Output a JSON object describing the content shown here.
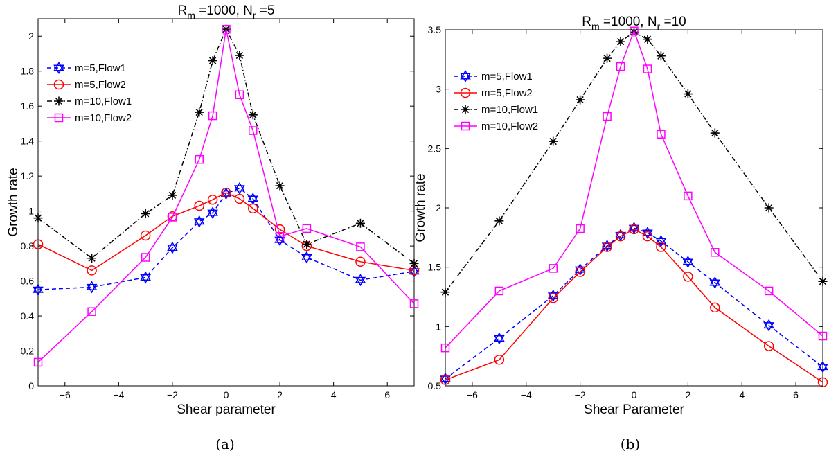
{
  "chart_data": [
    {
      "type": "line",
      "caption": "(a)",
      "title": {
        "r": "R",
        "rsub": "m",
        "mid": " =1000, N",
        "nsub": "r",
        "end": " =5"
      },
      "xlabel": "Shear parameter",
      "ylabel": "Growth rate",
      "xlim": [
        -7,
        7
      ],
      "ylim": [
        0,
        2.1
      ],
      "xticks": [
        -6,
        -4,
        -2,
        0,
        2,
        4,
        6
      ],
      "yticks": [
        0,
        0.2,
        0.4,
        0.6,
        0.8,
        1,
        1.2,
        1.4,
        1.6,
        1.8,
        2
      ],
      "ytick_labels": [
        "0",
        "0.2",
        "0.4",
        "0.6",
        "0.8",
        "1",
        "1.2",
        "1.4",
        "1.6",
        "1.8",
        "2"
      ],
      "legend_position": "top-left",
      "series": [
        {
          "name": "m=5,Flow1",
          "color": "#0000ff",
          "dash": "dashed",
          "marker": "hexagram",
          "x": [
            -7,
            -5,
            -3,
            -2,
            -1,
            -0.5,
            0,
            0.5,
            1,
            2,
            3,
            5,
            7
          ],
          "y": [
            0.55,
            0.565,
            0.62,
            0.79,
            0.94,
            0.99,
            1.1,
            1.13,
            1.07,
            0.835,
            0.735,
            0.605,
            0.655
          ]
        },
        {
          "name": "m=5,Flow2",
          "color": "#ff0000",
          "dash": "solid",
          "marker": "circle",
          "x": [
            -7,
            -5,
            -3,
            -2,
            -1,
            -0.5,
            0,
            0.5,
            1,
            2,
            3,
            5,
            7
          ],
          "y": [
            0.81,
            0.66,
            0.86,
            0.97,
            1.03,
            1.065,
            1.105,
            1.07,
            1.015,
            0.895,
            0.8,
            0.71,
            0.66
          ]
        },
        {
          "name": "m=10,Flow1",
          "color": "#000000",
          "dash": "dashdot",
          "marker": "asterisk",
          "x": [
            -7,
            -5,
            -3,
            -2,
            -1,
            -0.5,
            0,
            0.5,
            1,
            2,
            3,
            5,
            7
          ],
          "y": [
            0.96,
            0.73,
            0.985,
            1.09,
            1.565,
            1.86,
            2.04,
            1.89,
            1.55,
            1.145,
            0.81,
            0.93,
            0.7
          ]
        },
        {
          "name": "m=10,Flow2",
          "color": "#ff00ff",
          "dash": "solid",
          "marker": "square",
          "x": [
            -7,
            -5,
            -3,
            -2,
            -1,
            -0.5,
            0,
            0.5,
            1,
            2,
            3,
            5,
            7
          ],
          "y": [
            0.135,
            0.425,
            0.735,
            0.965,
            1.295,
            1.545,
            2.04,
            1.665,
            1.46,
            0.855,
            0.9,
            0.795,
            0.47
          ]
        }
      ]
    },
    {
      "type": "line",
      "caption": "(b)",
      "title": {
        "r": "R",
        "rsub": "m",
        "mid": " =1000, N",
        "nsub": "r",
        "end": " =10"
      },
      "xlabel": "Shear Parameter",
      "ylabel": "Growth rate",
      "xlim": [
        -7,
        7
      ],
      "ylim": [
        0.5,
        3.5
      ],
      "xticks": [
        -6,
        -4,
        -2,
        0,
        2,
        4,
        6
      ],
      "yticks": [
        0.5,
        1,
        1.5,
        2,
        2.5,
        3,
        3.5
      ],
      "ytick_labels": [
        "0.5",
        "1",
        "1.5",
        "2",
        "2.5",
        "3",
        "3.5"
      ],
      "legend_position": "top-left",
      "series": [
        {
          "name": "m=5,Flow1",
          "color": "#0000ff",
          "dash": "dashed",
          "marker": "hexagram",
          "x": [
            -7,
            -5,
            -3,
            -2,
            -1,
            -0.5,
            0,
            0.5,
            1,
            2,
            3,
            5,
            7
          ],
          "y": [
            0.56,
            0.9,
            1.26,
            1.48,
            1.68,
            1.77,
            1.83,
            1.79,
            1.72,
            1.545,
            1.37,
            1.01,
            0.66
          ]
        },
        {
          "name": "m=5,Flow2",
          "color": "#ff0000",
          "dash": "solid",
          "marker": "circle",
          "x": [
            -7,
            -5,
            -3,
            -2,
            -1,
            -0.5,
            0,
            0.5,
            1,
            2,
            3,
            5,
            7
          ],
          "y": [
            0.55,
            0.72,
            1.24,
            1.46,
            1.67,
            1.76,
            1.82,
            1.76,
            1.67,
            1.42,
            1.16,
            0.835,
            0.53
          ]
        },
        {
          "name": "m=10,Flow1",
          "color": "#000000",
          "dash": "dashdot",
          "marker": "asterisk",
          "x": [
            -7,
            -5,
            -3,
            -2,
            -1,
            -0.5,
            0,
            0.5,
            1,
            2,
            3,
            5,
            7
          ],
          "y": [
            1.29,
            1.89,
            2.56,
            2.91,
            3.26,
            3.4,
            3.48,
            3.42,
            3.28,
            2.96,
            2.63,
            2.0,
            1.38
          ]
        },
        {
          "name": "m=10,Flow2",
          "color": "#ff00ff",
          "dash": "solid",
          "marker": "square",
          "x": [
            -7,
            -5,
            -3,
            -2,
            -1,
            -0.5,
            0,
            0.5,
            1,
            2,
            3,
            5,
            7
          ],
          "y": [
            0.82,
            1.3,
            1.49,
            1.825,
            2.77,
            3.19,
            3.49,
            3.17,
            2.62,
            2.1,
            1.625,
            1.3,
            0.92
          ]
        }
      ]
    }
  ]
}
